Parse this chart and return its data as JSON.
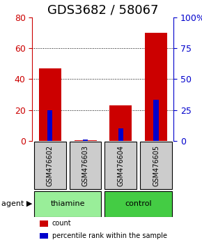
{
  "title": "GDS3682 / 58067",
  "samples": [
    "GSM476602",
    "GSM476603",
    "GSM476604",
    "GSM476605"
  ],
  "count_values": [
    47,
    0.5,
    23,
    70
  ],
  "percentile_values": [
    25,
    1.25,
    10,
    33
  ],
  "left_ylim": [
    0,
    80
  ],
  "right_ylim": [
    0,
    100
  ],
  "left_yticks": [
    0,
    20,
    40,
    60,
    80
  ],
  "right_yticks": [
    0,
    25,
    50,
    75,
    100
  ],
  "right_yticklabels": [
    "0",
    "25",
    "50",
    "75",
    "100%"
  ],
  "grid_values": [
    20,
    40,
    60
  ],
  "bar_color": "#cc0000",
  "percentile_color": "#0000cc",
  "bar_width": 0.35,
  "groups": [
    {
      "label": "thiamine",
      "color": "#99ee99",
      "samples": [
        0,
        1
      ]
    },
    {
      "label": "control",
      "color": "#44cc44",
      "samples": [
        2,
        3
      ]
    }
  ],
  "agent_label": "agent",
  "legend_items": [
    {
      "color": "#cc0000",
      "label": "count"
    },
    {
      "color": "#0000cc",
      "label": "percentile rank within the sample"
    }
  ],
  "background_color": "#ffffff",
  "sample_box_color": "#cccccc",
  "title_fontsize": 13,
  "axis_fontsize": 9,
  "label_fontsize": 8
}
